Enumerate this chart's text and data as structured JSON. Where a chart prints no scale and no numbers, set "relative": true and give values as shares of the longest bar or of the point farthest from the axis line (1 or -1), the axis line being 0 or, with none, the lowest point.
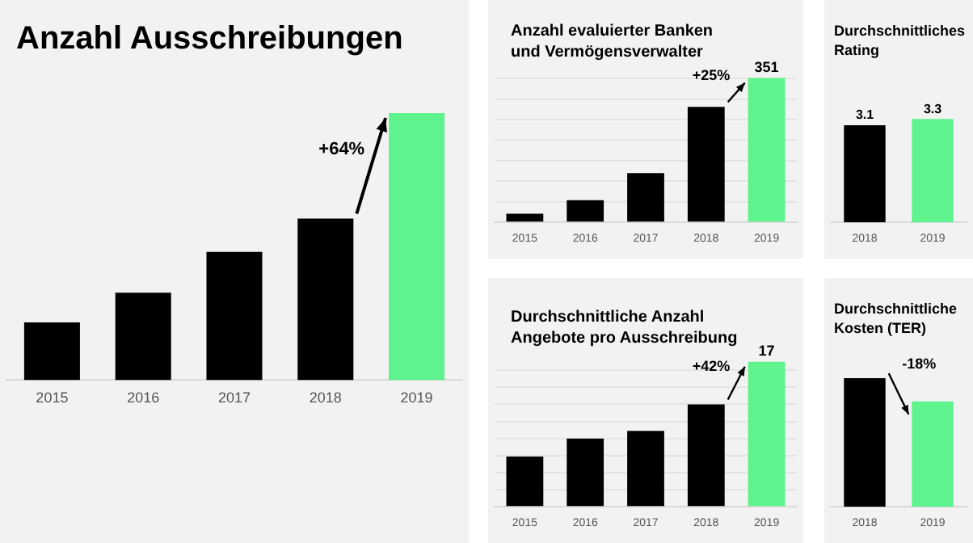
{
  "chart_data": [
    {
      "type": "bar",
      "title": "Anzahl Ausschreibungen",
      "categories": [
        "2015",
        "2016",
        "2017",
        "2018",
        "2019"
      ],
      "relative": true,
      "values": [
        0.216,
        0.327,
        0.48,
        0.605,
        1
      ],
      "colors": [
        "#000000",
        "#000000",
        "#000000",
        "#000000",
        "#5ef38c"
      ],
      "annotations": [
        "+64%"
      ]
    },
    {
      "type": "bar",
      "title": "Anzahl evaluierter Banken\nund Vermögensverwalter",
      "categories": [
        "2015",
        "2016",
        "2017",
        "2018",
        "2019"
      ],
      "values": [
        21,
        54,
        120,
        281,
        351
      ],
      "value_labels": [
        null,
        null,
        null,
        null,
        "351"
      ],
      "colors": [
        "#000000",
        "#000000",
        "#000000",
        "#000000",
        "#5ef38c"
      ],
      "ylim": [
        0,
        360
      ],
      "yticks": [
        {
          "value": 0,
          "label": null
        },
        {
          "value": 50,
          "label": null
        },
        {
          "value": 100,
          "label": null
        },
        {
          "value": 150,
          "label": null
        },
        {
          "value": 200,
          "label": null
        },
        {
          "value": 250,
          "label": null
        },
        {
          "value": 300,
          "label": null
        },
        {
          "value": 350,
          "label": null
        }
      ],
      "grid": "y",
      "tick_labels": "x",
      "annotations": [
        "+25%"
      ]
    },
    {
      "type": "bar",
      "title": "Durchschnittliche Anzahl\nAngebote pro Ausschreibung",
      "categories": [
        "2015",
        "2016",
        "2017",
        "2018",
        "2019"
      ],
      "values": [
        5.9,
        8,
        8.9,
        12,
        17
      ],
      "value_labels": [
        null,
        null,
        null,
        null,
        "17"
      ],
      "colors": [
        "#000000",
        "#000000",
        "#000000",
        "#000000",
        "#5ef38c"
      ],
      "yticks": [
        {
          "value": 0,
          "label": null
        },
        {
          "value": 2,
          "label": null
        },
        {
          "value": 4,
          "label": null
        },
        {
          "value": 6,
          "label": null
        },
        {
          "value": 8,
          "label": null
        },
        {
          "value": 10,
          "label": null
        },
        {
          "value": 12,
          "label": null
        },
        {
          "value": 14,
          "label": null
        },
        {
          "value": 16,
          "label": null
        }
      ],
      "grid": "y",
      "tick_labels": "x",
      "annotations": [
        "+42%"
      ]
    },
    {
      "type": "bar",
      "title": "Durchschnittliches\nRating",
      "categories": [
        "2018",
        "2019"
      ],
      "values": [
        3.1,
        3.3
      ],
      "data_labels": true,
      "colors": [
        "#000000",
        "#5ef38c"
      ],
      "tick_labels": "x"
    },
    {
      "type": "bar",
      "title": "Durchschnittliche\nKosten (TER)",
      "categories": [
        "2018",
        "2019"
      ],
      "relative": true,
      "values": [
        1,
        0.82
      ],
      "colors": [
        "#000000",
        "#5ef38c"
      ],
      "annotations": [
        "-18%"
      ]
    }
  ]
}
